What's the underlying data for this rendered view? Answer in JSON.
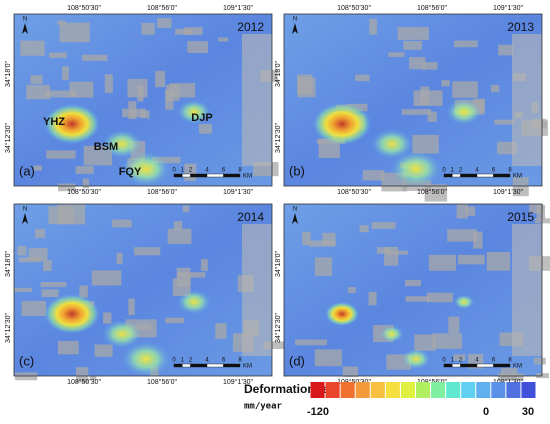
{
  "panels": [
    {
      "year": "2012",
      "label": "(a)"
    },
    {
      "year": "2013",
      "label": "(b)"
    },
    {
      "year": "2014",
      "label": "(c)"
    },
    {
      "year": "2015",
      "label": "(d)"
    }
  ],
  "places": [
    "YHZ",
    "BSM",
    "FQY",
    "DJP"
  ],
  "lon_labels": [
    "108°50'30\"",
    "108°56'0\"",
    "109°1'30\""
  ],
  "lat_labels": [
    "34°18'0\"",
    "34°12'30\""
  ],
  "north": "N",
  "scale": {
    "ticks": [
      0,
      1,
      2,
      4,
      6,
      8
    ],
    "unit": "KM"
  },
  "legend": {
    "title": "Deformation rate",
    "unit": "mm/year",
    "ticks": [
      -120,
      0,
      30
    ]
  }
}
